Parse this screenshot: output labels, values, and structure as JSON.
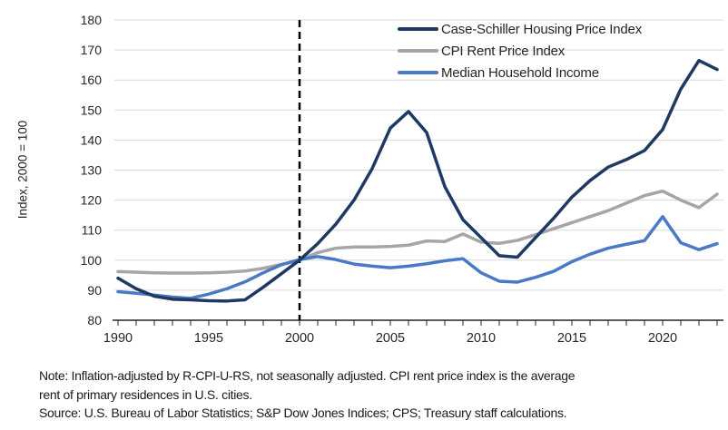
{
  "figure": {
    "y_axis_title": "Index, 2000 = 100",
    "notes": {
      "note_line1": "Note: Inflation-adjusted by R-CPI-U-RS, not seasonally adjusted. CPI rent price index is the average",
      "note_line2": "rent of primary residences in U.S. cities.",
      "source_line": "Source: U.S. Bureau of Labor Statistics; S&P Dow Jones Indices; CPS; Treasury staff calculations."
    }
  },
  "chart_data": {
    "type": "line",
    "title": "",
    "ylabel": "Index, 2000 = 100",
    "xlabel": "",
    "ylim": [
      80,
      180
    ],
    "ytick_step": 10,
    "xlim": [
      1990,
      2023
    ],
    "xticks_labeled": [
      1990,
      1995,
      2000,
      2005,
      2010,
      2015,
      2020
    ],
    "grid": "horizontal",
    "gridline_color": "#d9d9d9",
    "axis_color": "#262626",
    "text_color": "#262626",
    "reference_line": {
      "x": 2000,
      "style": "dashed",
      "color": "#000000"
    },
    "legend_position": "top-right-inside",
    "x": [
      1990,
      1991,
      1992,
      1993,
      1994,
      1995,
      1996,
      1997,
      1998,
      1999,
      2000,
      2001,
      2002,
      2003,
      2004,
      2005,
      2006,
      2007,
      2008,
      2009,
      2010,
      2011,
      2012,
      2013,
      2014,
      2015,
      2016,
      2017,
      2018,
      2019,
      2020,
      2021,
      2022,
      2023
    ],
    "series": [
      {
        "name": "Case-Schiller Housing Price Index",
        "color": "#1f3864",
        "values": [
          94,
          90.5,
          88,
          87,
          86.8,
          86.5,
          86.4,
          86.8,
          91,
          95.5,
          100,
          105.5,
          112,
          120,
          130.5,
          144,
          149.5,
          142.5,
          124.5,
          113.5,
          107.5,
          101.5,
          101,
          107.5,
          114,
          121,
          126.5,
          131,
          133.5,
          136.5,
          143.5,
          157,
          166.5,
          163.5
        ]
      },
      {
        "name": "CPI Rent Price Index",
        "color": "#a6a6a6",
        "values": [
          96.2,
          96,
          95.8,
          95.7,
          95.7,
          95.8,
          96,
          96.4,
          97.3,
          98.6,
          100,
          102.5,
          104,
          104.4,
          104.4,
          104.6,
          105,
          106.4,
          106.2,
          108.7,
          106,
          105.6,
          106.6,
          108.5,
          110.5,
          112.5,
          114.5,
          116.5,
          119,
          121.5,
          123,
          120,
          117.5,
          122
        ]
      },
      {
        "name": "Median Household Income",
        "color": "#4a79c6",
        "values": [
          89.5,
          89,
          88.4,
          87.7,
          87.3,
          88.7,
          90.5,
          92.8,
          95.8,
          98.5,
          100.2,
          101.2,
          100.2,
          98.7,
          98,
          97.5,
          98,
          98.8,
          99.8,
          100.5,
          95.8,
          93,
          92.7,
          94.3,
          96.3,
          99.5,
          102,
          104,
          105.3,
          106.5,
          114.5,
          105.8,
          103.5,
          105.5
        ]
      }
    ]
  }
}
